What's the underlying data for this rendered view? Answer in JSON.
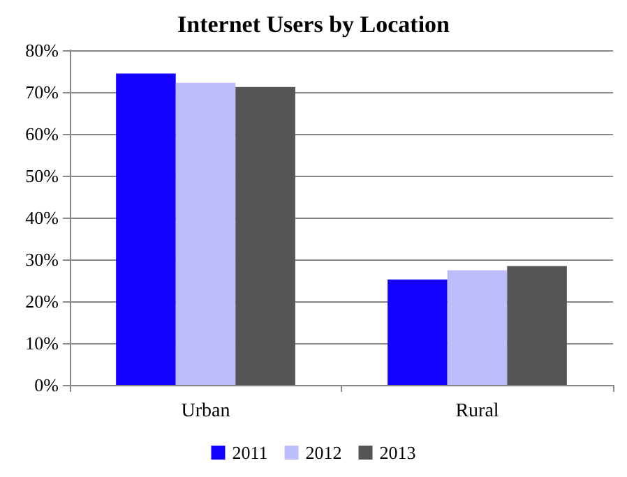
{
  "chart_data": {
    "type": "bar",
    "title": "Internet Users by Location",
    "categories": [
      "Urban",
      "Rural"
    ],
    "series": [
      {
        "name": "2011",
        "color": "#1400ff",
        "values": [
          74.4,
          25.2
        ]
      },
      {
        "name": "2012",
        "color": "#bcbcfa",
        "values": [
          72.2,
          27.4
        ]
      },
      {
        "name": "2013",
        "color": "#555555",
        "values": [
          71.2,
          28.4
        ]
      }
    ],
    "ylim": [
      0,
      80
    ],
    "yticks": [
      {
        "value": 0,
        "label": "0%"
      },
      {
        "value": 10,
        "label": "10%"
      },
      {
        "value": 20,
        "label": "20%"
      },
      {
        "value": 30,
        "label": "30%"
      },
      {
        "value": 40,
        "label": "40%"
      },
      {
        "value": 50,
        "label": "50%"
      },
      {
        "value": 60,
        "label": "60%"
      },
      {
        "value": 70,
        "label": "70%"
      },
      {
        "value": 80,
        "label": "80%"
      }
    ],
    "grid": "y",
    "legend": "bottom"
  }
}
